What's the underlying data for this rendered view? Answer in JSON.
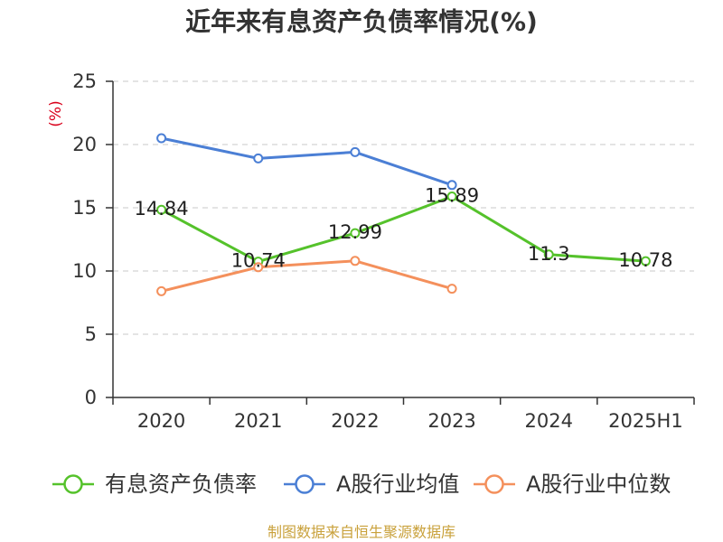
{
  "footer": "制图数据来自恒生聚源数据库",
  "colors": {
    "ylabel": "#d9001b",
    "footer": "#c9a13b",
    "axis": "#333333",
    "grid": "#c8c8c8"
  },
  "chart_data": {
    "type": "line",
    "title": "近年来有息资产负债率情况(%)",
    "ylabel": "(%)",
    "categories": [
      "2020",
      "2021",
      "2022",
      "2023",
      "2024",
      "2025H1"
    ],
    "ylim": [
      0,
      25
    ],
    "yticks": [
      0,
      5,
      10,
      15,
      20,
      25
    ],
    "grid": true,
    "legend_position": "bottom",
    "series": [
      {
        "name": "有息资产负债率",
        "color": "#55c22b",
        "show_labels": true,
        "values": [
          14.84,
          10.74,
          12.99,
          15.89,
          11.3,
          10.78
        ]
      },
      {
        "name": "A股行业均值",
        "color": "#4b7fd5",
        "show_labels": false,
        "values": [
          20.5,
          18.9,
          19.4,
          16.8,
          null,
          null
        ]
      },
      {
        "name": "A股行业中位数",
        "color": "#f4905c",
        "show_labels": false,
        "values": [
          8.4,
          10.3,
          10.8,
          8.6,
          null,
          null
        ]
      }
    ]
  }
}
